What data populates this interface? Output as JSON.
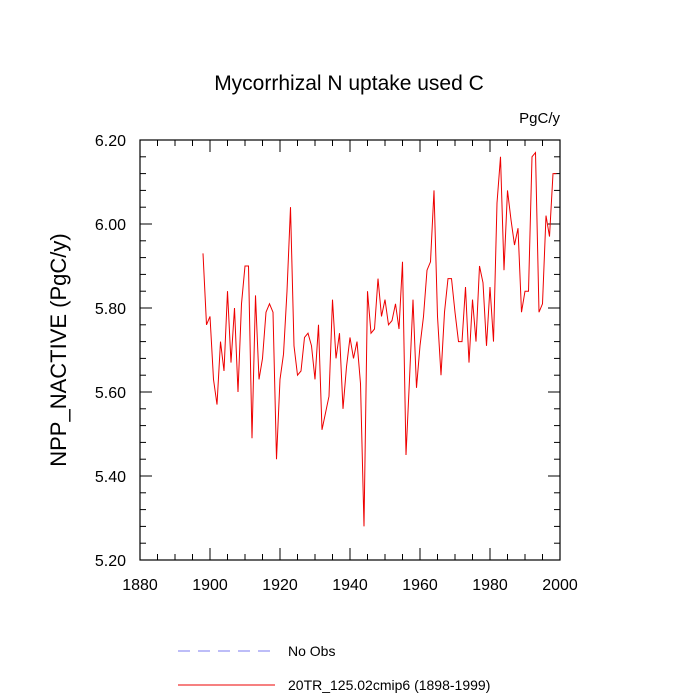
{
  "chart_data": {
    "type": "line",
    "title": "Mycorrhizal N uptake used C",
    "units": "PgC/y",
    "ylabel": "NPP_NACTIVE  (PgC/y)",
    "xlabel": "",
    "xlim": [
      1880,
      2000
    ],
    "ylim": [
      5.2,
      6.2
    ],
    "xticks": [
      1880,
      1900,
      1920,
      1940,
      1960,
      1980,
      2000
    ],
    "xtick_labels": [
      "1880",
      "1900",
      "1920",
      "1940",
      "1960",
      "1980",
      "2000"
    ],
    "yticks": [
      5.2,
      5.4,
      5.6,
      5.8,
      6.0,
      6.2
    ],
    "ytick_labels": [
      "5.20",
      "5.40",
      "5.60",
      "5.80",
      "6.00",
      "6.20"
    ],
    "legend_position": "bottom",
    "series": [
      {
        "name": "No Obs",
        "color": "#7b7bf0",
        "style": "dashed",
        "x": [],
        "values": []
      },
      {
        "name": "20TR_125.02cmip6 (1898-1999)",
        "color": "#ee0000",
        "style": "solid",
        "x": [
          1898,
          1899,
          1900,
          1901,
          1902,
          1903,
          1904,
          1905,
          1906,
          1907,
          1908,
          1909,
          1910,
          1911,
          1912,
          1913,
          1914,
          1915,
          1916,
          1917,
          1918,
          1919,
          1920,
          1921,
          1922,
          1923,
          1924,
          1925,
          1926,
          1927,
          1928,
          1929,
          1930,
          1931,
          1932,
          1933,
          1934,
          1935,
          1936,
          1937,
          1938,
          1939,
          1940,
          1941,
          1942,
          1943,
          1944,
          1945,
          1946,
          1947,
          1948,
          1949,
          1950,
          1951,
          1952,
          1953,
          1954,
          1955,
          1956,
          1957,
          1958,
          1959,
          1960,
          1961,
          1962,
          1963,
          1964,
          1965,
          1966,
          1967,
          1968,
          1969,
          1970,
          1971,
          1972,
          1973,
          1974,
          1975,
          1976,
          1977,
          1978,
          1979,
          1980,
          1981,
          1982,
          1983,
          1984,
          1985,
          1986,
          1987,
          1988,
          1989,
          1990,
          1991,
          1992,
          1993,
          1994,
          1995,
          1996,
          1997,
          1998,
          1999
        ],
        "values": [
          5.93,
          5.76,
          5.78,
          5.63,
          5.57,
          5.72,
          5.65,
          5.84,
          5.67,
          5.8,
          5.6,
          5.81,
          5.9,
          5.9,
          5.49,
          5.83,
          5.63,
          5.68,
          5.79,
          5.81,
          5.79,
          5.44,
          5.63,
          5.69,
          5.84,
          6.04,
          5.71,
          5.64,
          5.65,
          5.73,
          5.74,
          5.71,
          5.63,
          5.76,
          5.51,
          5.55,
          5.59,
          5.82,
          5.68,
          5.74,
          5.56,
          5.66,
          5.73,
          5.68,
          5.72,
          5.62,
          5.28,
          5.84,
          5.74,
          5.75,
          5.87,
          5.78,
          5.82,
          5.76,
          5.77,
          5.81,
          5.75,
          5.91,
          5.45,
          5.63,
          5.82,
          5.61,
          5.71,
          5.78,
          5.89,
          5.91,
          6.08,
          5.78,
          5.64,
          5.79,
          5.87,
          5.87,
          5.79,
          5.72,
          5.72,
          5.85,
          5.67,
          5.82,
          5.72,
          5.9,
          5.86,
          5.71,
          5.85,
          5.72,
          6.05,
          6.16,
          5.89,
          6.08,
          6.01,
          5.95,
          5.99,
          5.79,
          5.84,
          5.84,
          6.16,
          6.17,
          5.79,
          5.81,
          6.02,
          5.97,
          6.12,
          6.12
        ]
      }
    ]
  }
}
